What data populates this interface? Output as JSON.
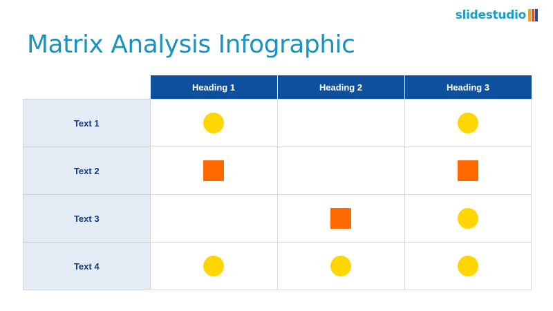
{
  "logo": {
    "text": "slidestudio",
    "colors": [
      "#1a9fc9",
      "#f6a21e",
      "#e8541f",
      "#1d4f9a"
    ]
  },
  "title": "Matrix Analysis Infographic",
  "legend_markers": {
    "circle": {
      "color": "#ffd600",
      "shape": "circle"
    },
    "square": {
      "color": "#ff6a00",
      "shape": "square"
    }
  },
  "columns": [
    "Heading 1",
    "Heading 2",
    "Heading 3"
  ],
  "rows": [
    {
      "label": "Text 1",
      "cells": [
        "circle",
        "",
        "circle"
      ]
    },
    {
      "label": "Text 2",
      "cells": [
        "square",
        "",
        "square"
      ]
    },
    {
      "label": "Text 3",
      "cells": [
        "",
        "square",
        "circle"
      ]
    },
    {
      "label": "Text 4",
      "cells": [
        "circle",
        "circle",
        "circle"
      ]
    }
  ]
}
